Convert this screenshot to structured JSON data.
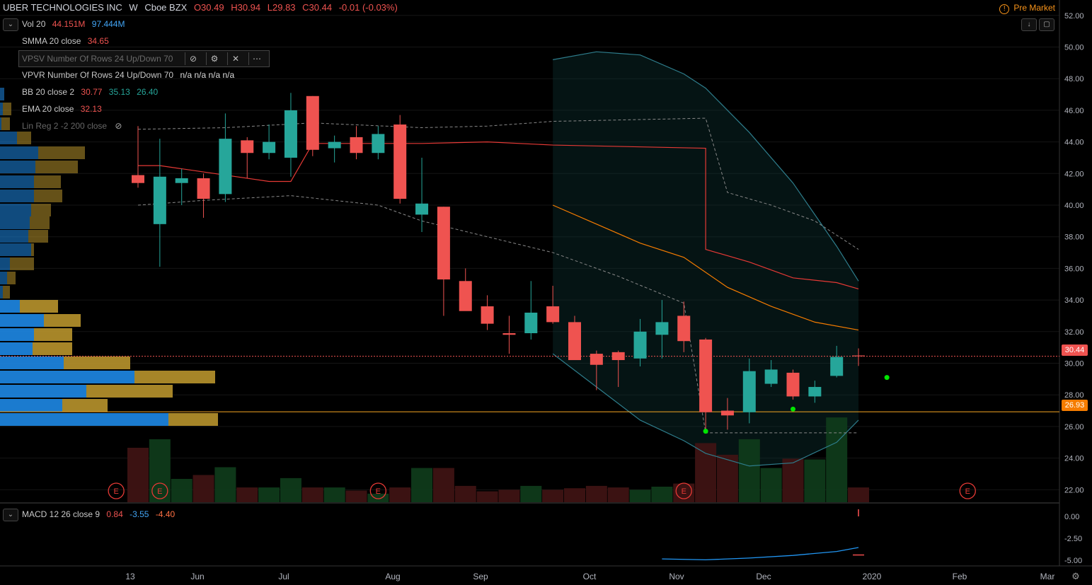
{
  "header": {
    "symbol": "UBER TECHNOLOGIES INC",
    "interval": "W",
    "exchange": "Cboe BZX",
    "open": "O30.49",
    "high": "H30.94",
    "low": "L29.83",
    "close": "C30.44",
    "change": "-0.01 (-0.03%)",
    "pre_market": "Pre Market",
    "pre_market_icon": "!"
  },
  "indicators": {
    "vol": {
      "label": "Vol 20",
      "v1": "44.151M",
      "v2": "97.444M"
    },
    "smma": {
      "label": "SMMA 20 close",
      "v": "34.65"
    },
    "vpsv": {
      "label": "VPSV Number Of Rows 24 Up/Down 70"
    },
    "vpvr": {
      "label": "VPVR Number Of Rows 24 Up/Down 70",
      "v": "n/a n/a n/a n/a"
    },
    "bb": {
      "label": "BB 20 close 2",
      "v1": "30.77",
      "v2": "35.13",
      "v3": "26.40"
    },
    "ema": {
      "label": "EMA 20 close",
      "v": "32.13"
    },
    "linreg": {
      "label": "Lin Reg 2 -2 200 close"
    },
    "macd": {
      "label": "MACD 12 26 close 9",
      "v1": "0.84",
      "v2": "-3.55",
      "v3": "-4.40"
    }
  },
  "icons": {
    "eye": "eye-hidden-icon",
    "gear": "gear-icon",
    "close": "close-icon",
    "more": "more-icon",
    "collapse": "chevron-down-icon",
    "arrow": "arrow-down-icon",
    "fullscreen": "fullscreen-icon",
    "earnings": "E"
  },
  "colors": {
    "up": "#26a69a",
    "down": "#ef5350",
    "smma": "#e53935",
    "ema": "#f57c00",
    "bb": "#2e7d8c",
    "hline": "#f5a623",
    "vpvr_blue": "#1e88e5",
    "vpvr_gold": "#b8942c"
  },
  "chart_data": {
    "type": "candlestick",
    "x_tick_labels": [
      "13",
      "Jun",
      "Jul",
      "Aug",
      "Sep",
      "Oct",
      "Nov",
      "Dec",
      "2020",
      "Feb",
      "Mar"
    ],
    "y_ticks": [
      "52.00",
      "50.00",
      "48.00",
      "46.00",
      "44.00",
      "42.00",
      "40.00",
      "38.00",
      "36.00",
      "34.00",
      "32.00",
      "30.00",
      "28.00",
      "26.00",
      "24.00",
      "22.00"
    ],
    "macd_ticks": [
      "0.00",
      "-2.50",
      "-5.00"
    ],
    "price_labels": {
      "last": "30.44",
      "level": "26.93"
    },
    "candles": [
      {
        "o": 41.9,
        "h": 45.0,
        "l": 41.1,
        "c": 41.4
      },
      {
        "o": 38.8,
        "h": 44.2,
        "l": 36.1,
        "c": 41.8
      },
      {
        "o": 41.4,
        "h": 42.3,
        "l": 40.0,
        "c": 41.7
      },
      {
        "o": 41.7,
        "h": 42.0,
        "l": 39.2,
        "c": 40.4
      },
      {
        "o": 40.7,
        "h": 45.8,
        "l": 40.2,
        "c": 44.2
      },
      {
        "o": 44.1,
        "h": 44.3,
        "l": 41.7,
        "c": 43.3
      },
      {
        "o": 43.3,
        "h": 45.1,
        "l": 42.9,
        "c": 44.0
      },
      {
        "o": 43.0,
        "h": 47.1,
        "l": 41.8,
        "c": 46.0
      },
      {
        "o": 46.9,
        "h": 46.9,
        "l": 43.1,
        "c": 43.5
      },
      {
        "o": 43.6,
        "h": 44.4,
        "l": 42.7,
        "c": 44.0
      },
      {
        "o": 44.3,
        "h": 45.0,
        "l": 42.9,
        "c": 43.3
      },
      {
        "o": 43.3,
        "h": 45.0,
        "l": 42.9,
        "c": 44.5
      },
      {
        "o": 45.1,
        "h": 45.7,
        "l": 40.1,
        "c": 40.4
      },
      {
        "o": 39.4,
        "h": 43.0,
        "l": 38.3,
        "c": 40.1
      },
      {
        "o": 39.9,
        "h": 39.9,
        "l": 33.0,
        "c": 35.3
      },
      {
        "o": 35.2,
        "h": 36.0,
        "l": 33.4,
        "c": 33.3
      },
      {
        "o": 33.6,
        "h": 34.3,
        "l": 32.1,
        "c": 32.5
      },
      {
        "o": 31.9,
        "h": 33.0,
        "l": 30.6,
        "c": 31.8
      },
      {
        "o": 31.9,
        "h": 35.2,
        "l": 31.5,
        "c": 33.2
      },
      {
        "o": 33.6,
        "h": 34.9,
        "l": 32.5,
        "c": 32.6
      },
      {
        "o": 32.6,
        "h": 33.0,
        "l": 30.2,
        "c": 30.2
      },
      {
        "o": 30.6,
        "h": 30.8,
        "l": 28.3,
        "c": 29.9
      },
      {
        "o": 30.7,
        "h": 30.8,
        "l": 28.5,
        "c": 30.2
      },
      {
        "o": 30.3,
        "h": 32.8,
        "l": 29.8,
        "c": 32.0
      },
      {
        "o": 31.8,
        "h": 34.0,
        "l": 30.3,
        "c": 32.6
      },
      {
        "o": 33.0,
        "h": 33.9,
        "l": 30.7,
        "c": 31.4
      },
      {
        "o": 31.5,
        "h": 31.6,
        "l": 25.7,
        "c": 26.9
      },
      {
        "o": 27.0,
        "h": 27.8,
        "l": 25.8,
        "c": 26.7
      },
      {
        "o": 26.9,
        "h": 30.3,
        "l": 26.2,
        "c": 29.5
      },
      {
        "o": 28.7,
        "h": 30.2,
        "l": 28.5,
        "c": 29.6
      },
      {
        "o": 29.4,
        "h": 29.6,
        "l": 27.7,
        "c": 27.9
      },
      {
        "o": 27.9,
        "h": 28.9,
        "l": 27.5,
        "c": 28.5
      },
      {
        "o": 29.2,
        "h": 31.1,
        "l": 29.1,
        "c": 30.4
      },
      {
        "o": 30.49,
        "h": 30.94,
        "l": 29.83,
        "c": 30.44
      }
    ],
    "volume_rel": [
      0.7,
      0.81,
      0.3,
      0.35,
      0.45,
      0.19,
      0.19,
      0.31,
      0.19,
      0.19,
      0.15,
      0.11,
      0.19,
      0.44,
      0.44,
      0.21,
      0.14,
      0.16,
      0.21,
      0.16,
      0.18,
      0.21,
      0.19,
      0.16,
      0.2,
      0.24,
      0.76,
      0.61,
      0.81,
      0.44,
      0.56,
      0.55,
      1.09,
      0.19
    ],
    "series": [
      {
        "name": "SMMA 20 close",
        "points": [
          [
            0,
            42.5
          ],
          [
            1,
            42.5
          ],
          [
            6,
            41.5
          ],
          [
            7,
            41.5
          ],
          [
            8,
            43.9
          ],
          [
            13,
            43.9
          ],
          [
            16,
            44
          ],
          [
            19,
            43.8
          ],
          [
            26,
            43.6
          ],
          [
            26,
            37.2
          ],
          [
            28,
            36.4
          ],
          [
            30,
            35.4
          ],
          [
            32,
            35.1
          ],
          [
            33,
            34.7
          ]
        ]
      },
      {
        "name": "EMA 20 close",
        "points": [
          [
            19,
            40.0
          ],
          [
            21,
            38.8
          ],
          [
            23,
            37.6
          ],
          [
            25,
            36.7
          ],
          [
            27,
            34.8
          ],
          [
            29,
            33.6
          ],
          [
            31,
            32.6
          ],
          [
            33,
            32.1
          ]
        ]
      },
      {
        "name": "BB upper",
        "points": [
          [
            19,
            49.2
          ],
          [
            21,
            49.7
          ],
          [
            23,
            49.5
          ],
          [
            25,
            48.3
          ],
          [
            26,
            47.4
          ],
          [
            28,
            44.6
          ],
          [
            30,
            41.4
          ],
          [
            32,
            37.4
          ],
          [
            33,
            35.2
          ]
        ]
      },
      {
        "name": "BB lower",
        "points": [
          [
            19,
            30.6
          ],
          [
            21,
            28.5
          ],
          [
            23,
            26.4
          ],
          [
            25,
            25.1
          ],
          [
            26,
            24.3
          ],
          [
            28,
            23.5
          ],
          [
            30,
            23.7
          ],
          [
            32,
            25.0
          ],
          [
            33,
            26.4
          ]
        ]
      }
    ],
    "macd_line": [
      [
        24,
        -4.85
      ],
      [
        26,
        -4.95
      ],
      [
        28,
        -4.75
      ],
      [
        30,
        -4.45
      ],
      [
        32,
        -4.0
      ],
      [
        33,
        -3.55
      ]
    ],
    "macd_signal_last": -4.4,
    "earnings_markers_x": [
      -1,
      1,
      11,
      25,
      38
    ]
  }
}
